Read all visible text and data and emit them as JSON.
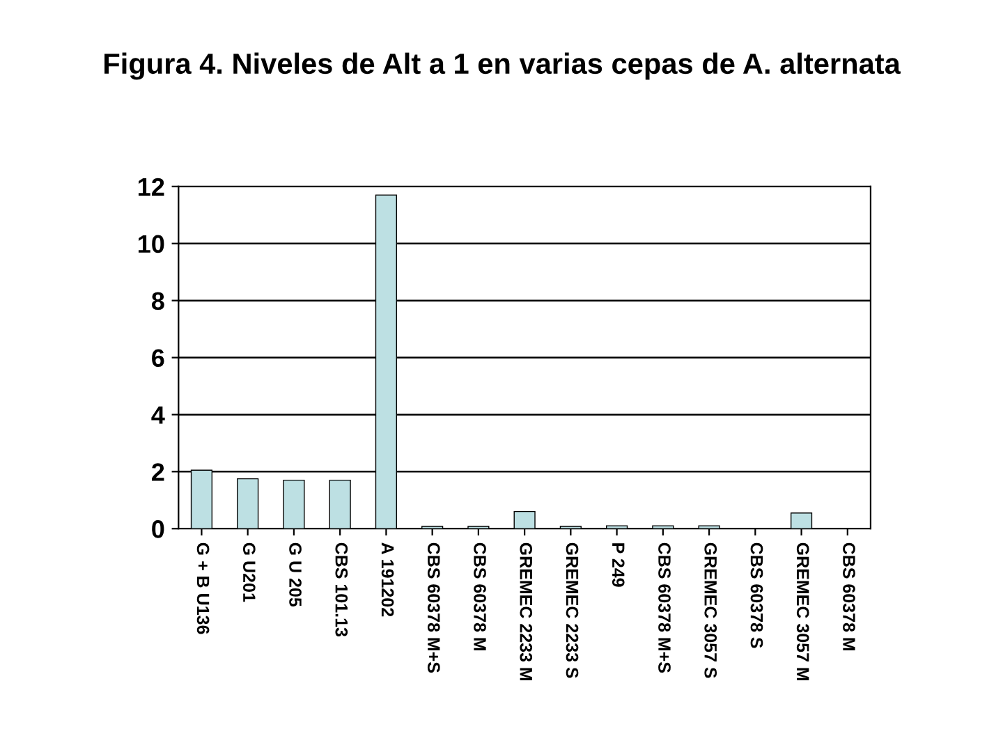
{
  "chart_data": {
    "type": "bar",
    "title": "Figura 4. Niveles de Alt a 1 en varias cepas de A. alternata",
    "categories": [
      "G + B U136",
      "G U201",
      "G U 205",
      "CBS 101.13",
      "A 191202",
      "CBS 60378 M+S",
      "CBS 60378 M",
      "GREMEC 2233 M",
      "GREMEC 2233 S",
      "P 249",
      "CBS 60378 M+S",
      "GREMEC 3057 S",
      "CBS 60378 S",
      "GREMEC 3057 M",
      "CBS 60378 M"
    ],
    "values": [
      2.05,
      1.75,
      1.7,
      1.7,
      11.7,
      0.08,
      0.08,
      0.6,
      0.08,
      0.1,
      0.1,
      0.1,
      null,
      0.55,
      null
    ],
    "color": "#bde0e3",
    "ylim": [
      0,
      12
    ],
    "yticks": [
      0,
      2,
      4,
      6,
      8,
      10,
      12
    ],
    "grid": "y"
  }
}
